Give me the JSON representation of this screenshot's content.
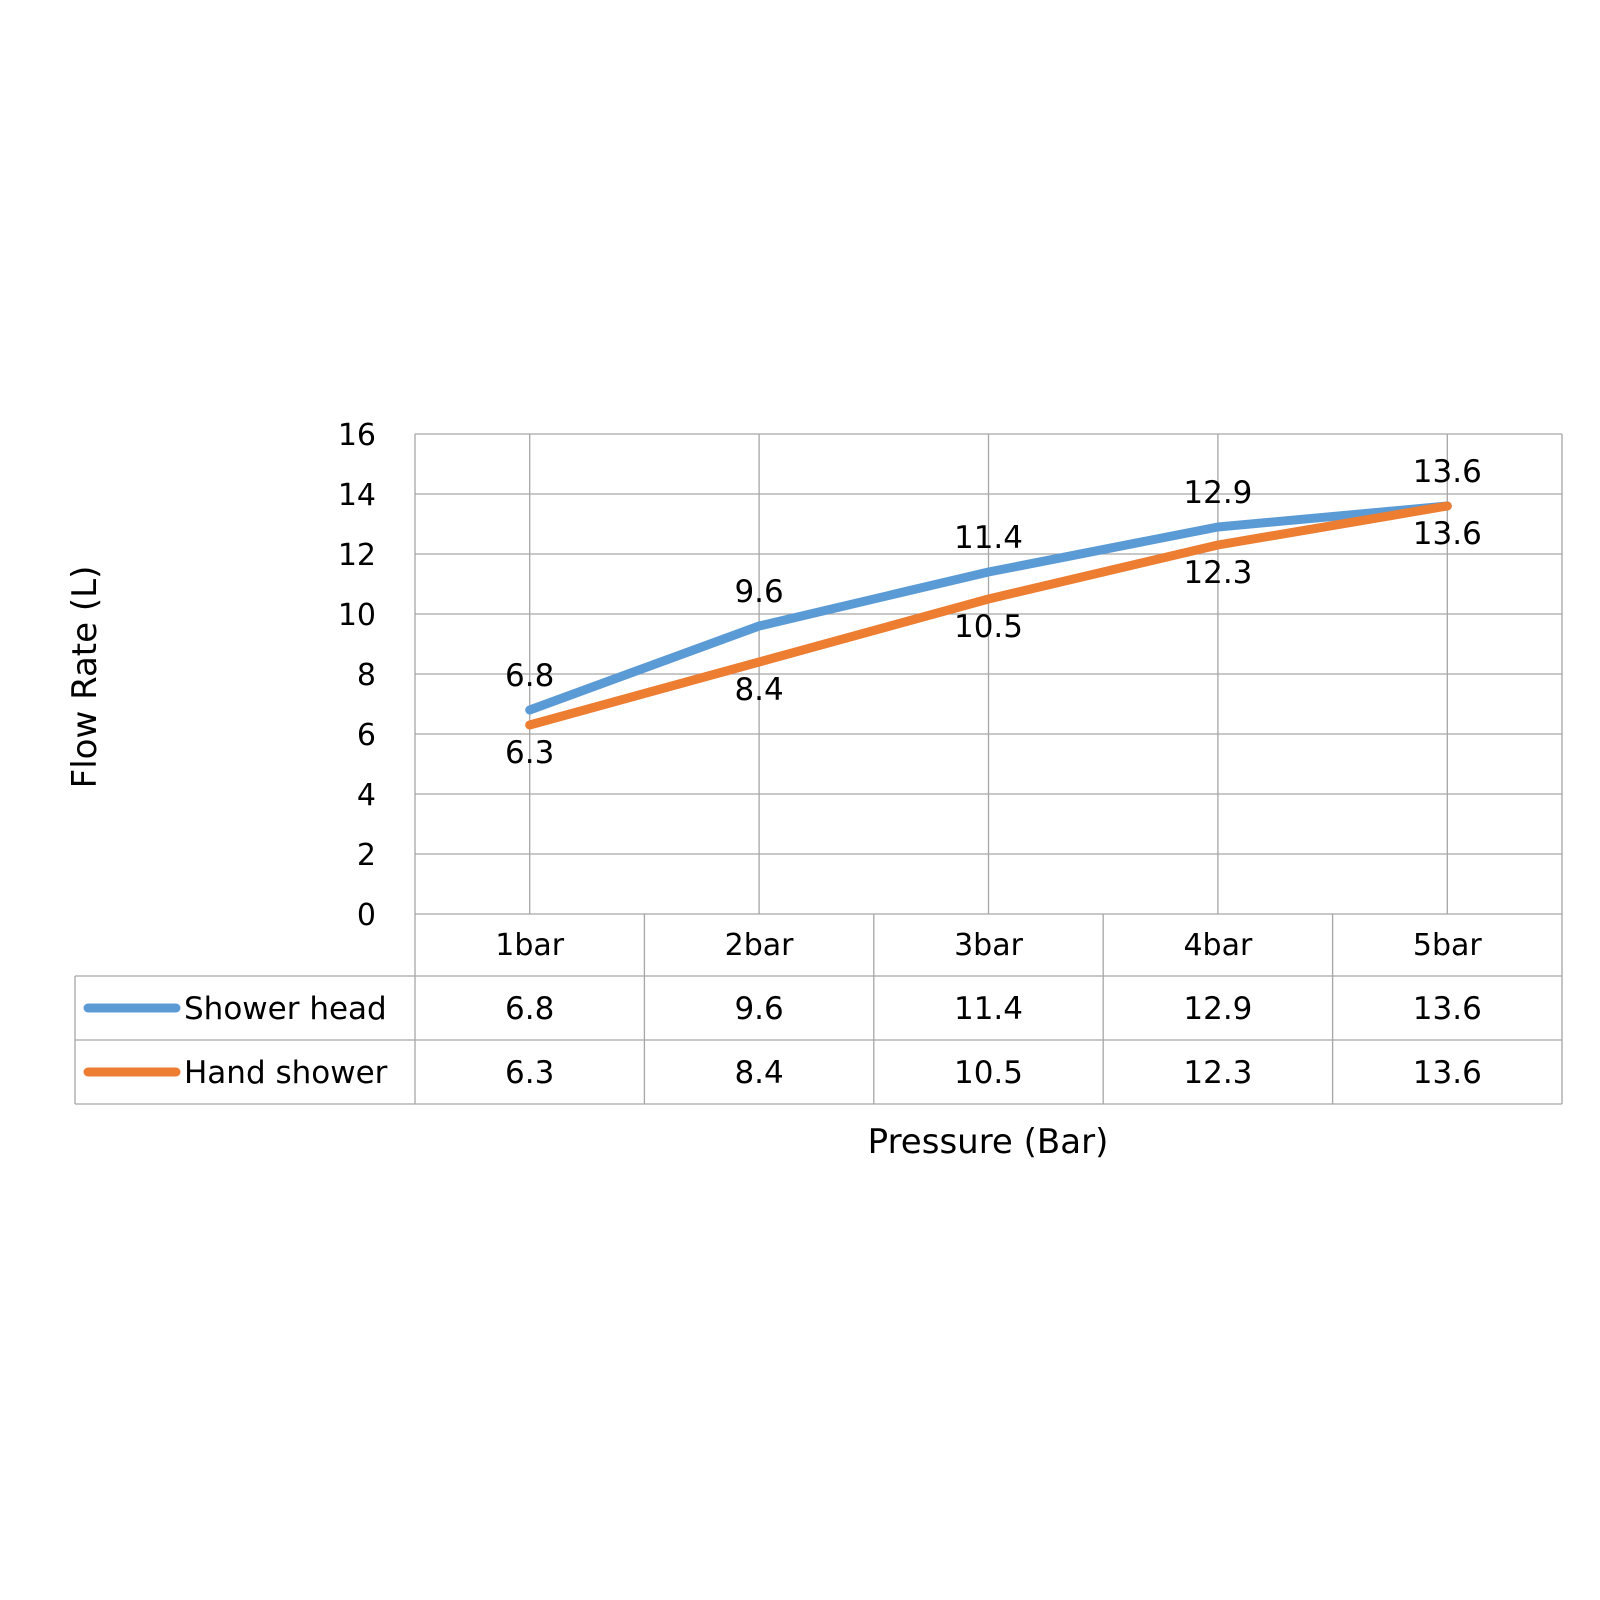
{
  "chart_data": {
    "type": "line",
    "xlabel": "Pressure (Bar)",
    "ylabel": "Flow Rate (L)",
    "categories": [
      "1bar",
      "2bar",
      "3bar",
      "4bar",
      "5bar"
    ],
    "ylim": [
      0,
      16
    ],
    "yticks": [
      0,
      2,
      4,
      6,
      8,
      10,
      12,
      14,
      16
    ],
    "grid": true,
    "legend": "data-table",
    "series": [
      {
        "name": "Shower head",
        "values": [
          6.8,
          9.6,
          11.4,
          12.9,
          13.6
        ],
        "color": "#5B9BD5"
      },
      {
        "name": "Hand shower",
        "values": [
          6.3,
          8.4,
          10.5,
          12.3,
          13.6
        ],
        "color": "#ED7D31"
      }
    ]
  }
}
